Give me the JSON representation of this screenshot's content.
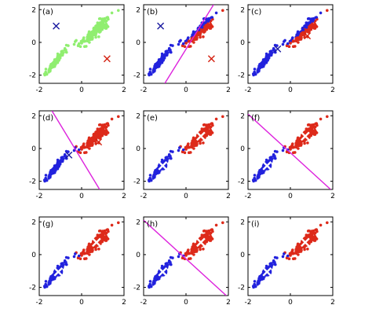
{
  "figure": {
    "colors": {
      "unassigned": "#90ee70",
      "cluster1": "#2222dd",
      "cluster2": "#dd2a1a",
      "boundary": "#dd22dd",
      "centroid_init1": "#1a1aa0",
      "centroid_init2": "#d42010",
      "centroid_final": "#ffffff"
    }
  },
  "chart_data": [
    {
      "type": "scatter",
      "panel_label": "(a)",
      "xlim": [
        -2,
        2
      ],
      "ylim": [
        -2.5,
        2.3
      ],
      "xticks": [
        "-2",
        "0",
        "2"
      ],
      "yticks": [
        "2",
        "0",
        "-2"
      ],
      "xtick_values": [
        -2,
        0,
        2
      ],
      "ytick_values": [
        2,
        0,
        -2
      ],
      "coloring": "none",
      "boundary": null,
      "centroids": [
        {
          "x": -1.2,
          "y": 1.0,
          "series": "cluster1",
          "style": "cross"
        },
        {
          "x": 1.2,
          "y": -1.0,
          "series": "cluster2",
          "style": "cross"
        }
      ],
      "grid": false
    },
    {
      "type": "scatter",
      "panel_label": "(b)",
      "xlim": [
        -2,
        2
      ],
      "ylim": [
        -2.5,
        2.3
      ],
      "xticks": [
        "-2",
        "0",
        "2"
      ],
      "yticks": [
        "2",
        "0",
        "-2"
      ],
      "xtick_values": [
        -2,
        0,
        2
      ],
      "ytick_values": [
        2,
        0,
        -2
      ],
      "coloring": "initial",
      "boundary": [
        [
          -1.0,
          -2.5
        ],
        [
          1.3,
          2.3
        ]
      ],
      "centroids": [
        {
          "x": -1.2,
          "y": 1.0,
          "series": "cluster1",
          "style": "cross"
        },
        {
          "x": 1.2,
          "y": -1.0,
          "series": "cluster2",
          "style": "cross"
        }
      ],
      "grid": false
    },
    {
      "type": "scatter",
      "panel_label": "(c)",
      "xlim": [
        -2,
        2
      ],
      "ylim": [
        -2.5,
        2.3
      ],
      "xticks": [
        "-2",
        "0",
        "2"
      ],
      "yticks": [
        "2",
        "0",
        "-2"
      ],
      "xtick_values": [
        -2,
        0,
        2
      ],
      "ytick_values": [
        2,
        0,
        -2
      ],
      "coloring": "initial",
      "boundary": null,
      "centroids": [
        {
          "x": -0.6,
          "y": -0.4,
          "series": "cluster1",
          "style": "cross"
        },
        {
          "x": 0.8,
          "y": 0.4,
          "series": "cluster2",
          "style": "cross"
        }
      ],
      "grid": false
    },
    {
      "type": "scatter",
      "panel_label": "(d)",
      "xlim": [
        -2,
        2
      ],
      "ylim": [
        -2.5,
        2.3
      ],
      "xticks": [
        "-2",
        "0",
        "2"
      ],
      "yticks": [
        "2",
        "0",
        "-2"
      ],
      "xtick_values": [
        -2,
        0,
        2
      ],
      "ytick_values": [
        2,
        0,
        -2
      ],
      "coloring": "final",
      "boundary": [
        [
          -1.4,
          2.3
        ],
        [
          0.85,
          -2.5
        ]
      ],
      "centroids": [
        {
          "x": -0.6,
          "y": -0.4,
          "series": "cluster1",
          "style": "cross"
        },
        {
          "x": 0.8,
          "y": 0.4,
          "series": "cluster2",
          "style": "cross"
        }
      ],
      "grid": false
    },
    {
      "type": "scatter",
      "panel_label": "(e)",
      "xlim": [
        -2,
        2
      ],
      "ylim": [
        -2.5,
        2.3
      ],
      "xticks": [
        "-2",
        "0",
        "2"
      ],
      "yticks": [
        "2",
        "0",
        "-2"
      ],
      "xtick_values": [
        -2,
        0,
        2
      ],
      "ytick_values": [
        2,
        0,
        -2
      ],
      "coloring": "final",
      "boundary": null,
      "centroids": [
        {
          "x": -1.1,
          "y": -1.05,
          "series": "cluster1",
          "style": "final"
        },
        {
          "x": 0.7,
          "y": 0.75,
          "series": "cluster2",
          "style": "final"
        }
      ],
      "grid": false
    },
    {
      "type": "scatter",
      "panel_label": "(f)",
      "xlim": [
        -2,
        2
      ],
      "ylim": [
        -2.5,
        2.3
      ],
      "xticks": [
        "-2",
        "0",
        "2"
      ],
      "yticks": [
        "2",
        "0",
        "-2"
      ],
      "xtick_values": [
        -2,
        0,
        2
      ],
      "ytick_values": [
        2,
        0,
        -2
      ],
      "coloring": "final",
      "boundary": [
        [
          -2.0,
          2.1
        ],
        [
          1.9,
          -2.5
        ]
      ],
      "centroids": [
        {
          "x": -1.1,
          "y": -1.05,
          "series": "cluster1",
          "style": "final"
        },
        {
          "x": 0.7,
          "y": 0.75,
          "series": "cluster2",
          "style": "final"
        }
      ],
      "grid": false
    },
    {
      "type": "scatter",
      "panel_label": "(g)",
      "xlim": [
        -2,
        2
      ],
      "ylim": [
        -2.5,
        2.3
      ],
      "xticks": [
        "-2",
        "0",
        "2"
      ],
      "yticks": [
        "2",
        "0",
        "-2"
      ],
      "xtick_values": [
        -2,
        0,
        2
      ],
      "ytick_values": [
        2,
        0,
        -2
      ],
      "coloring": "final",
      "boundary": null,
      "centroids": [
        {
          "x": -1.1,
          "y": -1.05,
          "series": "cluster1",
          "style": "final"
        },
        {
          "x": 0.7,
          "y": 0.75,
          "series": "cluster2",
          "style": "final"
        }
      ],
      "grid": false
    },
    {
      "type": "scatter",
      "panel_label": "(h)",
      "xlim": [
        -2,
        2
      ],
      "ylim": [
        -2.5,
        2.3
      ],
      "xticks": [
        "-2",
        "0",
        "2"
      ],
      "yticks": [
        "2",
        "0",
        "-2"
      ],
      "xtick_values": [
        -2,
        0,
        2
      ],
      "ytick_values": [
        2,
        0,
        -2
      ],
      "coloring": "final",
      "boundary": [
        [
          -2.0,
          2.1
        ],
        [
          1.9,
          -2.5
        ]
      ],
      "centroids": [
        {
          "x": -1.1,
          "y": -1.05,
          "series": "cluster1",
          "style": "final"
        },
        {
          "x": 0.7,
          "y": 0.75,
          "series": "cluster2",
          "style": "final"
        }
      ],
      "grid": false
    },
    {
      "type": "scatter",
      "panel_label": "(i)",
      "xlim": [
        -2,
        2
      ],
      "ylim": [
        -2.5,
        2.3
      ],
      "xticks": [
        "-2",
        "0",
        "2"
      ],
      "yticks": [
        "2",
        "0",
        "-2"
      ],
      "xtick_values": [
        -2,
        0,
        2
      ],
      "ytick_values": [
        2,
        0,
        -2
      ],
      "coloring": "final",
      "boundary": null,
      "centroids": [
        {
          "x": -1.1,
          "y": -1.05,
          "series": "cluster1",
          "style": "final"
        },
        {
          "x": 0.7,
          "y": 0.75,
          "series": "cluster2",
          "style": "final"
        }
      ],
      "grid": false
    }
  ]
}
